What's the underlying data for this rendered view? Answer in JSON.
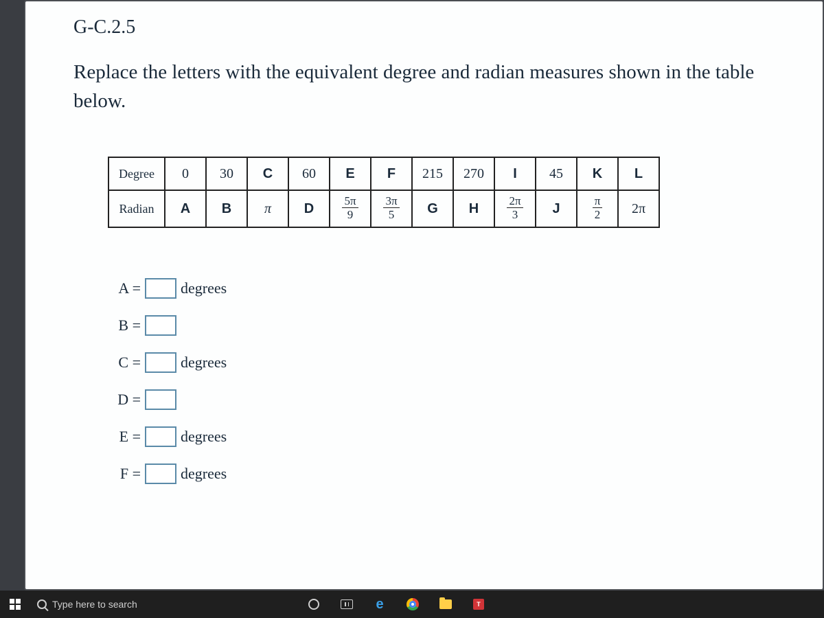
{
  "standard_label": "G-C.2.5",
  "instructions": "Replace the letters with the equivalent degree and radian measures shown in the table below.",
  "table": {
    "row_headers": [
      "Degree",
      "Radian"
    ],
    "degree_row": [
      {
        "text": "0",
        "style": "num"
      },
      {
        "text": "30",
        "style": "num"
      },
      {
        "text": "C",
        "style": "big"
      },
      {
        "text": "60",
        "style": "num"
      },
      {
        "text": "E",
        "style": "big"
      },
      {
        "text": "F",
        "style": "big"
      },
      {
        "text": "215",
        "style": "num"
      },
      {
        "text": "270",
        "style": "num"
      },
      {
        "text": "I",
        "style": "big"
      },
      {
        "text": "45",
        "style": "num"
      },
      {
        "text": "K",
        "style": "big"
      },
      {
        "text": "L",
        "style": "big"
      }
    ],
    "radian_row": [
      {
        "text": "A",
        "style": "big"
      },
      {
        "text": "B",
        "style": "big"
      },
      {
        "text": "π",
        "style": "pi"
      },
      {
        "text": "D",
        "style": "big"
      },
      {
        "type": "frac",
        "num": "5π",
        "den": "9"
      },
      {
        "type": "frac",
        "num": "3π",
        "den": "5"
      },
      {
        "text": "G",
        "style": "big"
      },
      {
        "text": "H",
        "style": "big"
      },
      {
        "type": "frac",
        "num": "2π",
        "den": "3"
      },
      {
        "text": "J",
        "style": "big"
      },
      {
        "type": "frac",
        "num": "π",
        "den": "2"
      },
      {
        "text": "2π",
        "style": "pi2"
      }
    ]
  },
  "answers": [
    {
      "label": "A =",
      "unit": "degrees"
    },
    {
      "label": "B =",
      "unit": ""
    },
    {
      "label": "C =",
      "unit": "degrees"
    },
    {
      "label": "D =",
      "unit": ""
    },
    {
      "label": "E =",
      "unit": "degrees"
    },
    {
      "label": "F =",
      "unit": "degrees"
    }
  ],
  "taskbar": {
    "search_placeholder": "Type here to search",
    "app_label": "T"
  },
  "colors": {
    "page_bg": "#fdfefe",
    "outer_bg": "#3a3d42",
    "text": "#1a2a3a",
    "table_border": "#222222",
    "input_border": "#5a8aa8",
    "taskbar_bg": "#1f1f1f",
    "taskbar_text": "#cfcfcf"
  }
}
